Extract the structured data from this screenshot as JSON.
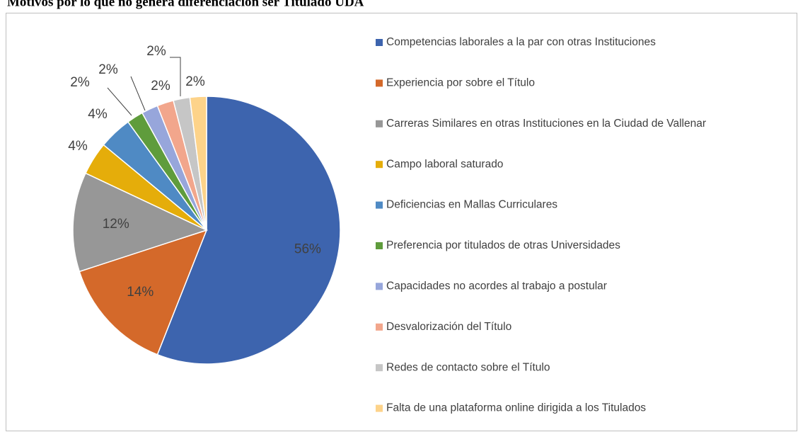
{
  "chart_data": {
    "type": "pie",
    "title": "Motivos por lo que no genera diferenciación ser Titulado UDA",
    "categories": [
      "Competencias laborales a la par con otras Instituciones",
      "Experiencia por sobre el Título",
      "Carreras Similares en otras Instituciones en la Ciudad de Vallenar",
      "Campo laboral saturado",
      "Deficiencias en Mallas Curriculares",
      "Preferencia por titulados de otras Universidades",
      "Capacidades no acordes al trabajo a postular",
      "Desvalorización del Título",
      "Redes de contacto sobre el Título",
      "Falta de una plataforma online dirigida a los Titulados"
    ],
    "values": [
      56,
      14,
      12,
      4,
      4,
      2,
      2,
      2,
      2,
      2
    ],
    "value_labels": [
      "56%",
      "14%",
      "12%",
      "4%",
      "4%",
      "2%",
      "2%",
      "2%",
      "2%",
      "2%"
    ],
    "colors": [
      "#3d64ae",
      "#d4692a",
      "#979797",
      "#e5ad0a",
      "#4f8ac4",
      "#5f9c3c",
      "#97a6db",
      "#f2a68c",
      "#c6c6c6",
      "#fdd38a"
    ],
    "legend": "right"
  }
}
